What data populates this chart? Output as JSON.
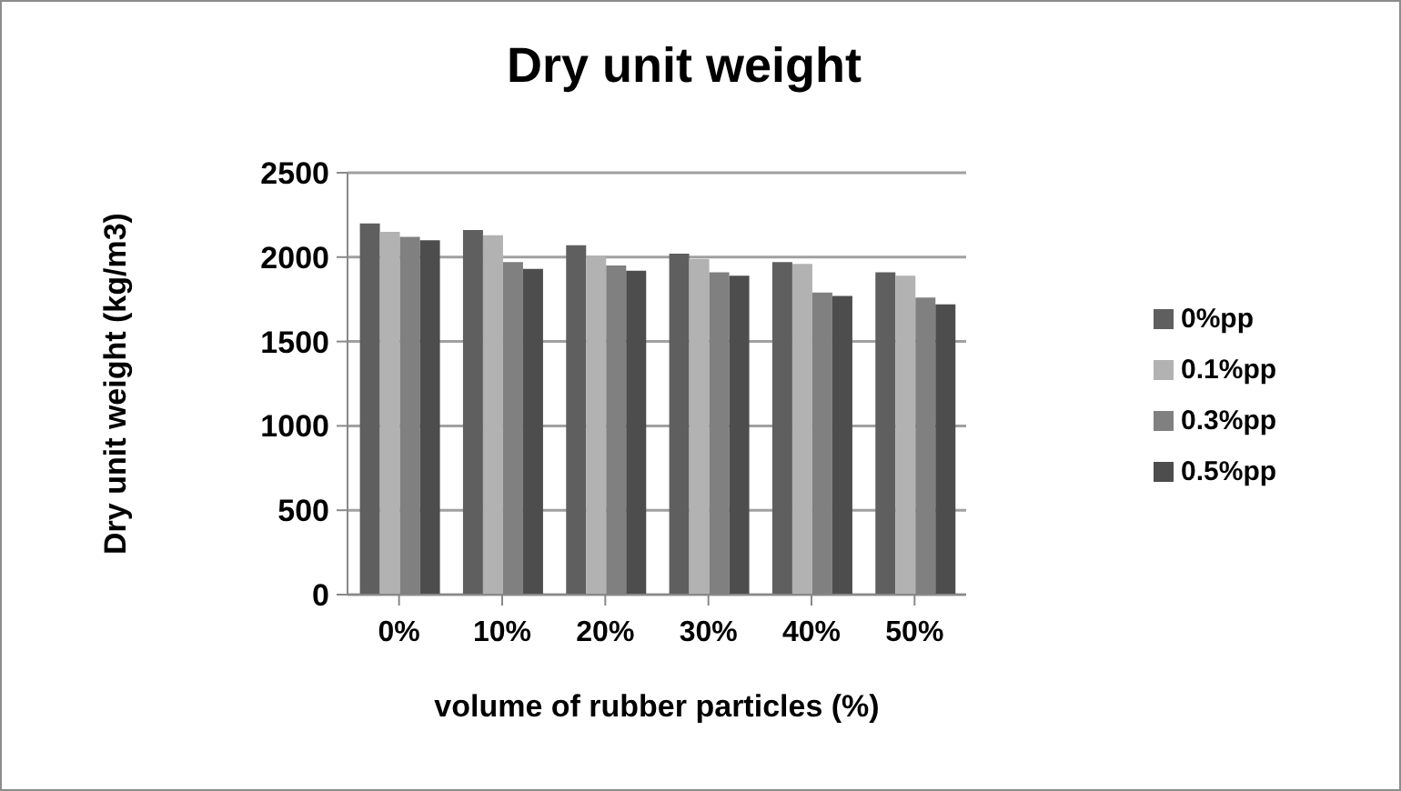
{
  "chart_data": {
    "type": "bar",
    "title": "Dry unit weight",
    "xlabel": "volume of rubber particles (%)",
    "ylabel": "Dry unit weight (kg/m3)",
    "categories": [
      "0%",
      "10%",
      "20%",
      "30%",
      "40%",
      "50%"
    ],
    "series": [
      {
        "name": "0%pp",
        "color": "#5f5f5f",
        "values": [
          2200,
          2160,
          2070,
          2020,
          1970,
          1910
        ]
      },
      {
        "name": "0.1%pp",
        "color": "#b2b2b2",
        "values": [
          2150,
          2130,
          2010,
          1990,
          1960,
          1890
        ]
      },
      {
        "name": "0.3%pp",
        "color": "#808080",
        "values": [
          2120,
          1970,
          1950,
          1910,
          1790,
          1760
        ]
      },
      {
        "name": "0.5%pp",
        "color": "#4d4d4d",
        "values": [
          2100,
          1930,
          1920,
          1890,
          1770,
          1720
        ]
      }
    ],
    "ylim": [
      0,
      2500
    ],
    "yticks": [
      0,
      500,
      1000,
      1500,
      2000,
      2500
    ],
    "grid": "y",
    "legend": "right"
  }
}
